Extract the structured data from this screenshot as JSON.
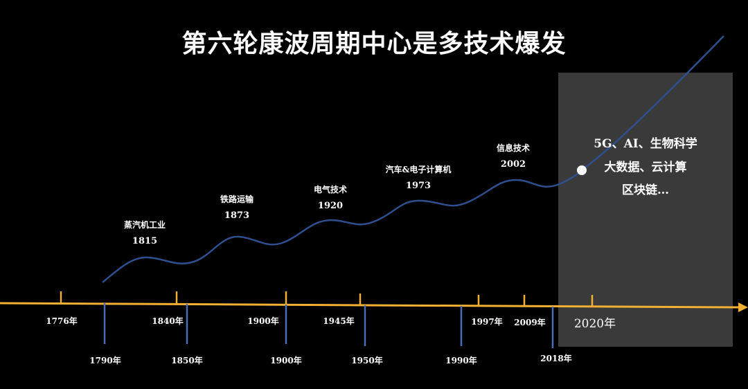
{
  "title": "第六轮康波周期中心是多技术爆发",
  "colors": {
    "background": "#000000",
    "axis": "#f2b134",
    "wave": "#2f4f8f",
    "lower_ticks": "#4a6fb8",
    "highlight_box": "#3a3a3a",
    "dot": "#ffffff"
  },
  "future_box": {
    "lines": [
      "5G、AI、生物科学",
      "大数据、云计算",
      "区块链…"
    ]
  },
  "waves": [
    {
      "name": "蒸汽机工业",
      "year": "1815"
    },
    {
      "name": "铁路运输",
      "year": "1873"
    },
    {
      "name": "电气技术",
      "year": "1920"
    },
    {
      "name": "汽车&电子计算机",
      "year": "1973"
    },
    {
      "name": "信息技术",
      "year": "2002"
    }
  ],
  "upper_ticks": [
    "1776年",
    "1840年",
    "1900年",
    "1945年",
    "1997年",
    "2009年",
    "2020年"
  ],
  "lower_ticks": [
    "1790年",
    "1850年",
    "1900年",
    "1950年",
    "1990年",
    "2018年"
  ]
}
